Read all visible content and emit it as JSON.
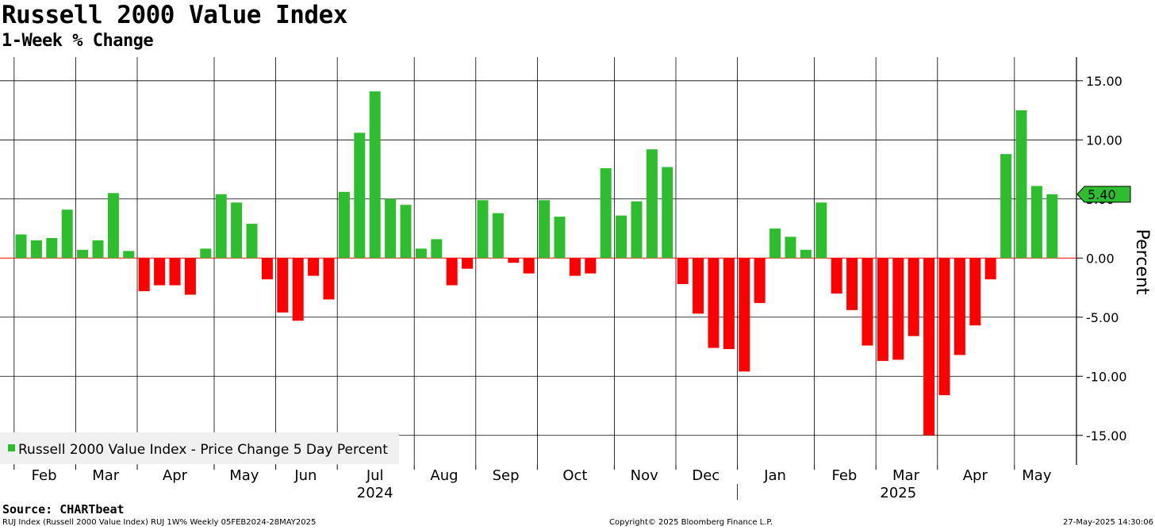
{
  "title": "Russell 2000 Value Index",
  "subtitle": "1-Week % Change",
  "source": "Source: CHARTbeat",
  "footer": {
    "left": "RUJ Index (Russell 2000 Value Index) RUJ 1W%  Weekly 05FEB2024-28MAY2025",
    "center": "Copyright© 2025 Bloomberg Finance L.P.",
    "right": "27-May-2025 14:30:06"
  },
  "colors": {
    "positive": "#2ebd2e",
    "negative": "#ff0000",
    "grid": "#000000",
    "zero_line": "#ff0000"
  },
  "chart_data": {
    "type": "bar",
    "title": "Russell 2000 Value Index",
    "subtitle": "1-Week % Change",
    "ylabel": "Percent",
    "ylim": [
      -17.5,
      17.0
    ],
    "yticks": [
      15,
      10,
      5,
      0,
      -5,
      -10,
      -15
    ],
    "ytick_labels": [
      "15.00",
      "10.00",
      "5.00",
      "0.00",
      "-5.00",
      "-10.00",
      "-15.00"
    ],
    "grid": true,
    "legend": {
      "position": "bottom-left",
      "entries": [
        "Russell 2000 Value Index - Price Change 5 Day Percent"
      ]
    },
    "last_value_label": "5.40",
    "month_labels": [
      "Feb",
      "Mar",
      "Apr",
      "May",
      "Jun",
      "Jul",
      "Aug",
      "Sep",
      "Oct",
      "Nov",
      "Dec",
      "Jan",
      "Feb",
      "Mar",
      "Apr",
      "May"
    ],
    "month_start_index": [
      0,
      4,
      8,
      13,
      17,
      21,
      26,
      30,
      34,
      39,
      43,
      47,
      52,
      56,
      60,
      65
    ],
    "year_labels": [
      "2024",
      "2025"
    ],
    "year_month_span": [
      [
        0,
        10
      ],
      [
        11,
        15
      ]
    ],
    "series": [
      {
        "name": "Russell 2000 Value Index - Price Change 5 Day Percent",
        "values": [
          2.0,
          1.5,
          1.7,
          4.1,
          0.7,
          1.5,
          5.5,
          0.6,
          -2.8,
          -2.3,
          -2.3,
          -3.1,
          0.8,
          5.4,
          4.7,
          2.9,
          -1.8,
          -4.6,
          -5.3,
          -1.5,
          -3.5,
          5.6,
          10.6,
          14.1,
          5.0,
          4.5,
          0.8,
          1.6,
          -2.3,
          -0.9,
          4.9,
          3.8,
          -0.4,
          -1.3,
          4.9,
          3.5,
          -1.5,
          -1.3,
          7.6,
          3.6,
          4.8,
          9.2,
          7.7,
          -2.2,
          -4.7,
          -7.6,
          -7.7,
          -9.6,
          -3.8,
          2.5,
          1.8,
          0.7,
          4.7,
          -3.0,
          -4.4,
          -7.4,
          -8.7,
          -8.6,
          -6.6,
          -15.0,
          -11.6,
          -8.2,
          -5.7,
          -1.8,
          8.8,
          12.5,
          6.1,
          5.4
        ]
      }
    ]
  }
}
